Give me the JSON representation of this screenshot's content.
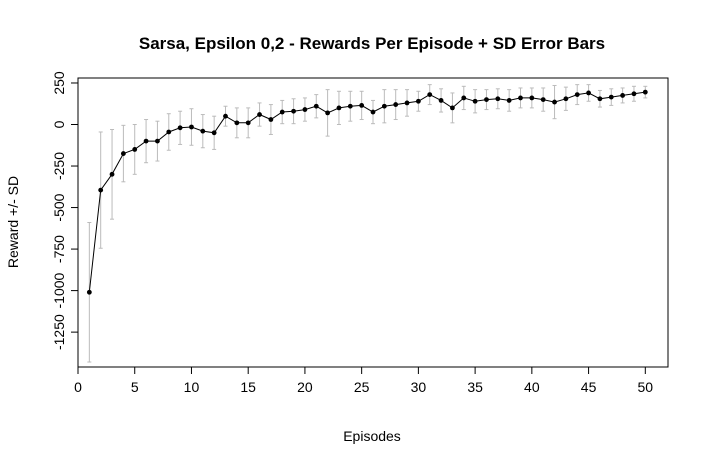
{
  "chart_data": {
    "type": "line",
    "title": "Sarsa, Epsilon 0,2 - Rewards Per Episode + SD Error Bars",
    "xlabel": "Episodes",
    "ylabel": "Reward +/- SD",
    "xlim": [
      0,
      52
    ],
    "ylim": [
      -1460,
      280
    ],
    "x_ticks": [
      0,
      5,
      10,
      15,
      20,
      25,
      30,
      35,
      40,
      45,
      50
    ],
    "x_tick_labels": [
      "0",
      "5",
      "10",
      "15",
      "20",
      "25",
      "30",
      "35",
      "40",
      "45",
      "50"
    ],
    "y_ticks": [
      250,
      0,
      -250,
      -500,
      -750,
      -1000,
      -1250
    ],
    "y_tick_labels": [
      "250",
      "0",
      "-250",
      "-500",
      "-750",
      "-1000",
      "-1250"
    ],
    "grid": false,
    "series_color": "#000000",
    "errorbar_color": "#bbbbbb",
    "x": [
      1,
      2,
      3,
      4,
      5,
      6,
      7,
      8,
      9,
      10,
      11,
      12,
      13,
      14,
      15,
      16,
      17,
      18,
      19,
      20,
      21,
      22,
      23,
      24,
      25,
      26,
      27,
      28,
      29,
      30,
      31,
      32,
      33,
      34,
      35,
      36,
      37,
      38,
      39,
      40,
      41,
      42,
      43,
      44,
      45,
      46,
      47,
      48,
      49,
      50
    ],
    "y": [
      -1010,
      -395,
      -300,
      -175,
      -150,
      -100,
      -100,
      -45,
      -20,
      -15,
      -40,
      -50,
      50,
      10,
      10,
      60,
      30,
      75,
      80,
      90,
      110,
      70,
      100,
      110,
      115,
      75,
      110,
      120,
      130,
      140,
      180,
      145,
      100,
      160,
      140,
      150,
      155,
      145,
      160,
      160,
      150,
      135,
      155,
      180,
      190,
      155,
      165,
      175,
      185,
      195
    ],
    "sd": [
      420,
      350,
      270,
      170,
      150,
      130,
      120,
      110,
      100,
      110,
      100,
      100,
      60,
      90,
      90,
      70,
      90,
      70,
      75,
      70,
      70,
      140,
      100,
      90,
      85,
      70,
      100,
      90,
      80,
      60,
      60,
      70,
      90,
      70,
      70,
      60,
      60,
      65,
      60,
      60,
      70,
      100,
      70,
      60,
      50,
      50,
      50,
      45,
      45,
      35
    ]
  }
}
